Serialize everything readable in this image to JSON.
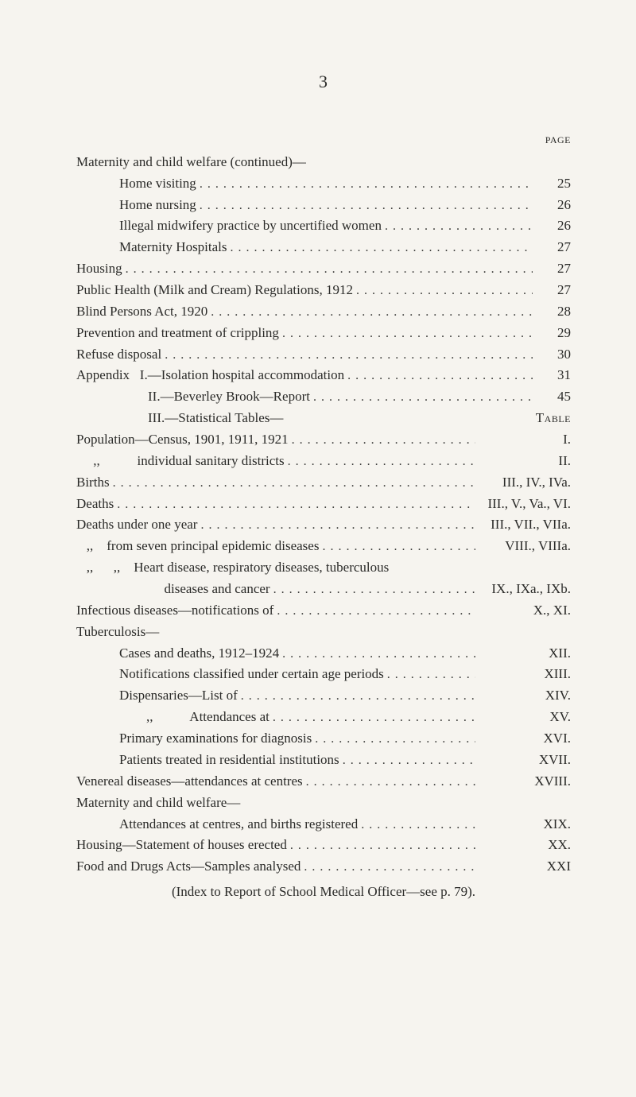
{
  "page_number": "3",
  "page_heading": "page",
  "table_heading": "Table",
  "entries": [
    {
      "label": "Maternity and child welfare (continued)—",
      "value": "",
      "indent": 0,
      "dots": false,
      "val_wide": false
    },
    {
      "label": "Home visiting",
      "value": "25",
      "indent": 1,
      "dots": true,
      "val_wide": false
    },
    {
      "label": "Home nursing",
      "value": "26",
      "indent": 1,
      "dots": true,
      "val_wide": false
    },
    {
      "label": "Illegal midwifery practice by uncertified women",
      "value": "26",
      "indent": 1,
      "dots": true,
      "val_wide": false
    },
    {
      "label": "Maternity Hospitals",
      "value": "27",
      "indent": 1,
      "dots": true,
      "val_wide": false
    },
    {
      "label": "Housing",
      "value": "27",
      "indent": 0,
      "dots": true,
      "val_wide": false
    },
    {
      "label": "Public Health (Milk and Cream) Regulations, 1912",
      "value": "27",
      "indent": 0,
      "dots": true,
      "val_wide": false
    },
    {
      "label": "Blind Persons Act, 1920",
      "value": "28",
      "indent": 0,
      "dots": true,
      "val_wide": false
    },
    {
      "label": "Prevention and treatment of crippling",
      "value": "29",
      "indent": 0,
      "dots": true,
      "val_wide": false
    },
    {
      "label": "Refuse disposal",
      "value": "30",
      "indent": 0,
      "dots": true,
      "val_wide": false
    },
    {
      "label": "Appendix   I.—Isolation hospital accommodation",
      "value": "31",
      "indent": 0,
      "dots": true,
      "val_wide": false
    },
    {
      "label": "II.—Beverley Brook—Report",
      "value": "45",
      "indent": 3,
      "dots": true,
      "val_wide": false
    },
    {
      "label": "III.—Statistical Tables—",
      "value": "__TABLE__",
      "indent": 3,
      "dots": false,
      "val_wide": true
    },
    {
      "label": "Population—Census, 1901, 1911, 1921",
      "value": "I.",
      "indent": 0,
      "dots": true,
      "val_wide": true
    },
    {
      "label": "     ,,           individual sanitary districts",
      "value": "II.",
      "indent": 0,
      "dots": true,
      "val_wide": true
    },
    {
      "label": "Births",
      "value": "III., IV., IVa.",
      "indent": 0,
      "dots": true,
      "val_wide": true
    },
    {
      "label": "Deaths",
      "value": "III., V., Va., VI.",
      "indent": 0,
      "dots": true,
      "val_wide": true
    },
    {
      "label": "Deaths under one year",
      "value": "III., VII., VIIa.",
      "indent": 0,
      "dots": true,
      "val_wide": true
    },
    {
      "label": "   ,,    from seven principal epidemic diseases",
      "value": "VIII., VIIIa.",
      "indent": 0,
      "dots": true,
      "val_wide": true
    },
    {
      "label": "   ,,      ,,    Heart disease, respiratory diseases, tuberculous",
      "value": "",
      "indent": 0,
      "dots": false,
      "val_wide": true
    },
    {
      "label": "                          diseases and cancer",
      "value": "IX., IXa., IXb.",
      "indent": 0,
      "dots": true,
      "val_wide": true
    },
    {
      "label": "Infectious diseases—notifications of",
      "value": "X., XI.",
      "indent": 0,
      "dots": true,
      "val_wide": true
    },
    {
      "label": "Tuberculosis—",
      "value": "",
      "indent": 0,
      "dots": false,
      "val_wide": true
    },
    {
      "label": "Cases and deaths, 1912–1924",
      "value": "XII.",
      "indent": 1,
      "dots": true,
      "val_wide": true
    },
    {
      "label": "Notifications classified under certain age periods",
      "value": "XIII.",
      "indent": 1,
      "dots": true,
      "val_wide": true
    },
    {
      "label": "Dispensaries—List of",
      "value": "XIV.",
      "indent": 1,
      "dots": true,
      "val_wide": true
    },
    {
      "label": "        ,,           Attendances at",
      "value": "XV.",
      "indent": 1,
      "dots": true,
      "val_wide": true
    },
    {
      "label": "Primary examinations for diagnosis",
      "value": "XVI.",
      "indent": 1,
      "dots": true,
      "val_wide": true
    },
    {
      "label": "Patients treated in residential institutions",
      "value": "XVII.",
      "indent": 1,
      "dots": true,
      "val_wide": true
    },
    {
      "label": "Venereal diseases—attendances at centres",
      "value": "XVIII.",
      "indent": 0,
      "dots": true,
      "val_wide": true
    },
    {
      "label": "Maternity and child welfare—",
      "value": "",
      "indent": 0,
      "dots": false,
      "val_wide": true
    },
    {
      "label": "Attendances at centres, and births registered",
      "value": "XIX.",
      "indent": 1,
      "dots": true,
      "val_wide": true
    },
    {
      "label": "Housing—Statement of houses erected",
      "value": "XX.",
      "indent": 0,
      "dots": true,
      "val_wide": true
    },
    {
      "label": "Food and Drugs Acts—Samples analysed",
      "value": "XXI",
      "indent": 0,
      "dots": true,
      "val_wide": true
    }
  ],
  "footnote": "(Index to Report of School Medical Officer—see p. 79)."
}
